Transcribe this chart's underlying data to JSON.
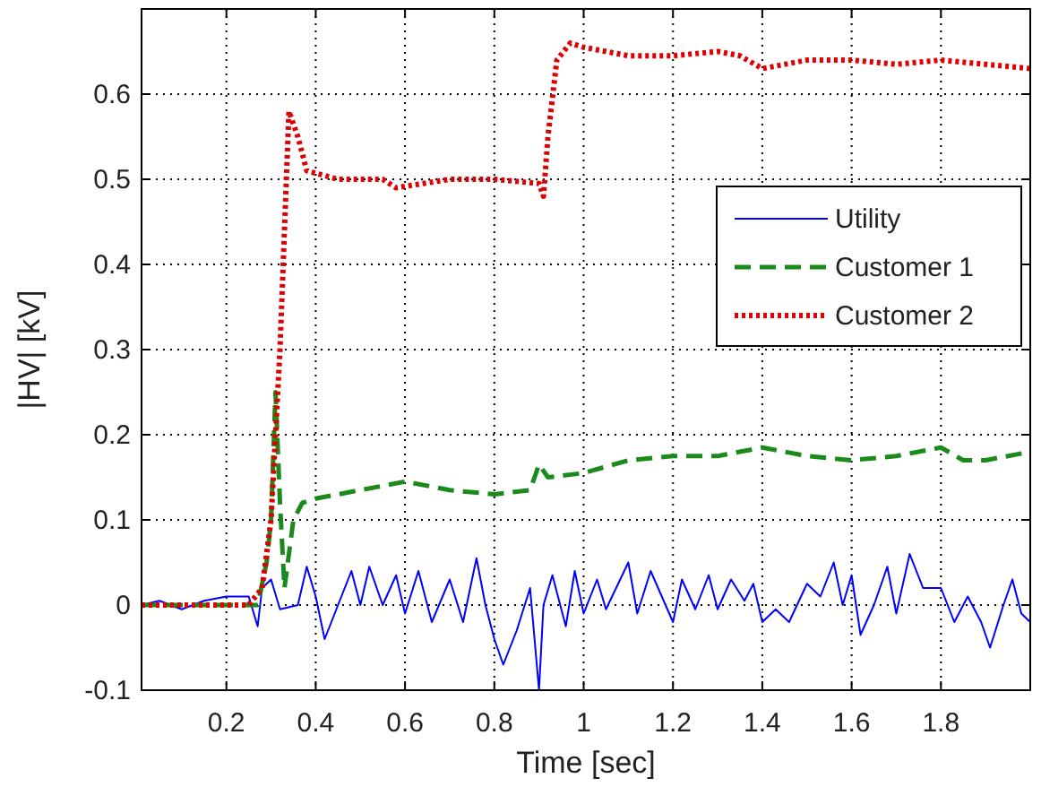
{
  "chart_data": {
    "type": "line",
    "xlabel": "Time [sec]",
    "ylabel": "|HV| [kV]",
    "xlim": [
      0.01,
      2
    ],
    "ylim": [
      -0.1,
      0.7
    ],
    "xticks": [
      0.2,
      0.4,
      0.6,
      0.8,
      1,
      1.2,
      1.4,
      1.6,
      1.8
    ],
    "yticks": [
      -0.1,
      0,
      0.1,
      0.2,
      0.3,
      0.4,
      0.5,
      0.6
    ],
    "grid": true,
    "legend": "right",
    "marker": "none",
    "series": [
      {
        "name": "Utility",
        "color": "#0000ff",
        "line_style": "solid",
        "x": [
          0.01,
          0.05,
          0.1,
          0.15,
          0.2,
          0.25,
          0.27,
          0.28,
          0.3,
          0.32,
          0.36,
          0.38,
          0.4,
          0.42,
          0.45,
          0.48,
          0.5,
          0.52,
          0.55,
          0.58,
          0.6,
          0.63,
          0.66,
          0.7,
          0.73,
          0.76,
          0.78,
          0.8,
          0.82,
          0.85,
          0.88,
          0.9,
          0.91,
          0.93,
          0.96,
          0.98,
          1,
          1.03,
          1.05,
          1.1,
          1.12,
          1.15,
          1.2,
          1.22,
          1.25,
          1.28,
          1.3,
          1.33,
          1.36,
          1.38,
          1.4,
          1.43,
          1.46,
          1.5,
          1.53,
          1.56,
          1.58,
          1.6,
          1.62,
          1.65,
          1.68,
          1.7,
          1.73,
          1.76,
          1.8,
          1.83,
          1.86,
          1.89,
          1.91,
          1.94,
          1.96,
          1.98,
          2
        ],
        "values": [
          0,
          0.005,
          -0.005,
          0.005,
          0.01,
          0.01,
          -0.025,
          0.02,
          0.03,
          -0.005,
          0,
          0.045,
          0.01,
          -0.04,
          0,
          0.04,
          0,
          0.045,
          0,
          0.035,
          -0.01,
          0.04,
          -0.02,
          0.03,
          -0.02,
          0.055,
          0,
          -0.04,
          -0.07,
          -0.03,
          0.02,
          -0.1,
          0,
          0.035,
          -0.025,
          0.04,
          -0.01,
          0.03,
          -0.005,
          0.05,
          -0.01,
          0.04,
          -0.02,
          0.03,
          -0.005,
          0.035,
          -0.005,
          0.03,
          0.005,
          0.025,
          -0.02,
          -0.005,
          -0.02,
          0.025,
          0.01,
          0.05,
          0,
          0.035,
          -0.035,
          0,
          0.045,
          -0.01,
          0.06,
          0.02,
          0.02,
          -0.02,
          0.01,
          -0.02,
          -0.05,
          0,
          0.03,
          -0.01,
          -0.02
        ]
      },
      {
        "name": "Customer 1",
        "color": "#1a8a1a",
        "line_style": "dashed",
        "x": [
          0.01,
          0.2,
          0.27,
          0.29,
          0.3,
          0.31,
          0.32,
          0.33,
          0.34,
          0.35,
          0.37,
          0.4,
          0.5,
          0.6,
          0.7,
          0.8,
          0.88,
          0.9,
          0.92,
          1,
          1.1,
          1.2,
          1.3,
          1.4,
          1.5,
          1.6,
          1.7,
          1.8,
          1.85,
          1.9,
          2
        ],
        "values": [
          0,
          0,
          0,
          0.05,
          0.1,
          0.25,
          0.12,
          0.02,
          0.06,
          0.1,
          0.12,
          0.125,
          0.135,
          0.145,
          0.135,
          0.13,
          0.135,
          0.165,
          0.15,
          0.155,
          0.17,
          0.175,
          0.175,
          0.185,
          0.175,
          0.17,
          0.175,
          0.185,
          0.17,
          0.17,
          0.18
        ]
      },
      {
        "name": "Customer 2",
        "color": "#e00000",
        "line_style": "dotted",
        "x": [
          0.01,
          0.25,
          0.28,
          0.3,
          0.32,
          0.34,
          0.36,
          0.38,
          0.45,
          0.55,
          0.58,
          0.7,
          0.8,
          0.9,
          0.91,
          0.92,
          0.94,
          0.97,
          1,
          1.1,
          1.2,
          1.3,
          1.35,
          1.4,
          1.5,
          1.6,
          1.7,
          1.8,
          1.9,
          2
        ],
        "values": [
          0,
          0,
          0.02,
          0.1,
          0.3,
          0.58,
          0.55,
          0.51,
          0.5,
          0.5,
          0.49,
          0.5,
          0.5,
          0.495,
          0.48,
          0.55,
          0.64,
          0.66,
          0.655,
          0.645,
          0.645,
          0.65,
          0.645,
          0.63,
          0.64,
          0.64,
          0.635,
          0.64,
          0.635,
          0.63
        ]
      }
    ]
  }
}
